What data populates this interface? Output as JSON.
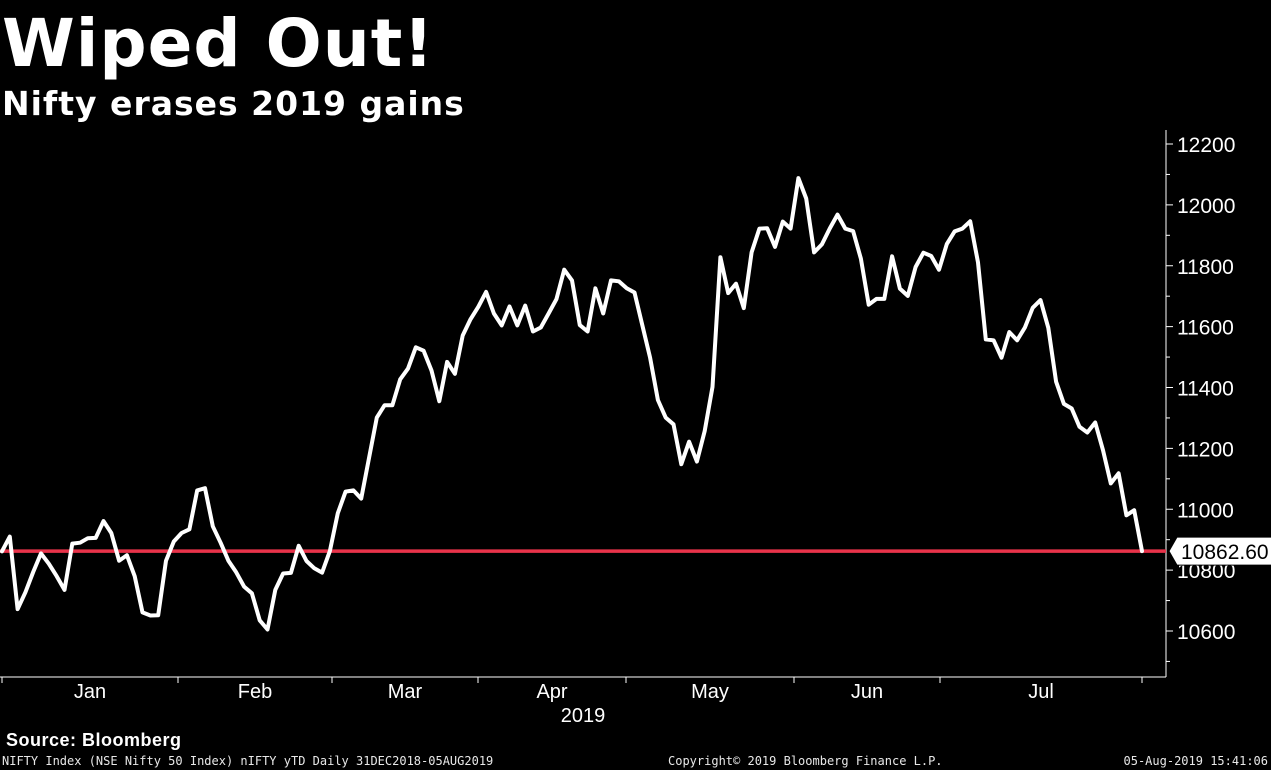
{
  "header": {
    "title": "Wiped Out!",
    "subtitle": "Nifty erases 2019 gains"
  },
  "source": "Source: Bloomberg",
  "footer": {
    "left": "NIFTY Index (NSE Nifty 50 Index) nIFTY yTD  Daily 31DEC2018-05AUG2019",
    "center": "Copyright© 2019 Bloomberg Finance L.P.",
    "right": "05-Aug-2019 15:41:06"
  },
  "colors": {
    "background": "#000000",
    "series": "#ffffff",
    "reference_line": "#e8334a",
    "axis": "#ffffff"
  },
  "chart_data": {
    "type": "line",
    "title": "Wiped Out!",
    "subtitle": "Nifty erases 2019 gains",
    "xlabel": "2019",
    "ylabel": "",
    "y_axis_side": "right",
    "ylim": [
      10450,
      12250
    ],
    "yticks": [
      10600,
      10800,
      11000,
      11200,
      11400,
      11600,
      11800,
      12000,
      12200
    ],
    "x_period_labels": [
      "Jan",
      "Feb",
      "Mar",
      "Apr",
      "May",
      "Jun",
      "Jul"
    ],
    "x_year_label": "2019",
    "grid": false,
    "reference_line": {
      "value": 10862.6,
      "label": "10862.60"
    },
    "series": [
      {
        "values": [
          10862,
          10910,
          10672,
          10727,
          10794,
          10855,
          10821,
          10780,
          10735,
          10887,
          10890,
          10905,
          10906,
          10961,
          10922,
          10831,
          10849,
          10780,
          10661,
          10651,
          10652,
          10831,
          10894,
          10922,
          10934,
          11062,
          11069,
          10944,
          10890,
          10831,
          10793,
          10746,
          10724,
          10635,
          10605,
          10735,
          10789,
          10791,
          10880,
          10830,
          10806,
          10792,
          10863,
          10987,
          11058,
          11062,
          11035,
          11168,
          11301,
          11342,
          11342,
          11427,
          11462,
          11532,
          11521,
          11456,
          11355,
          11484,
          11445,
          11571,
          11624,
          11665,
          11714,
          11643,
          11604,
          11666,
          11604,
          11669,
          11584,
          11597,
          11643,
          11690,
          11787,
          11752,
          11605,
          11584,
          11726,
          11643,
          11752,
          11749,
          11726,
          11712,
          11605,
          11498,
          11359,
          11301,
          11279,
          11148,
          11222,
          11157,
          11257,
          11402,
          11828,
          11710,
          11741,
          11661,
          11844,
          11922,
          11923,
          11862,
          11945,
          11922,
          12088,
          12021,
          11844,
          11870,
          11922,
          11968,
          11922,
          11914,
          11823,
          11672,
          11691,
          11691,
          11831,
          11725,
          11701,
          11796,
          11843,
          11832,
          11787,
          11871,
          11913,
          11922,
          11946,
          11811,
          11558,
          11555,
          11498,
          11582,
          11555,
          11597,
          11662,
          11687,
          11596,
          11419,
          11346,
          11331,
          11271,
          11252,
          11285,
          11194,
          11085,
          11118,
          10980,
          10997,
          10862.6
        ]
      }
    ]
  }
}
